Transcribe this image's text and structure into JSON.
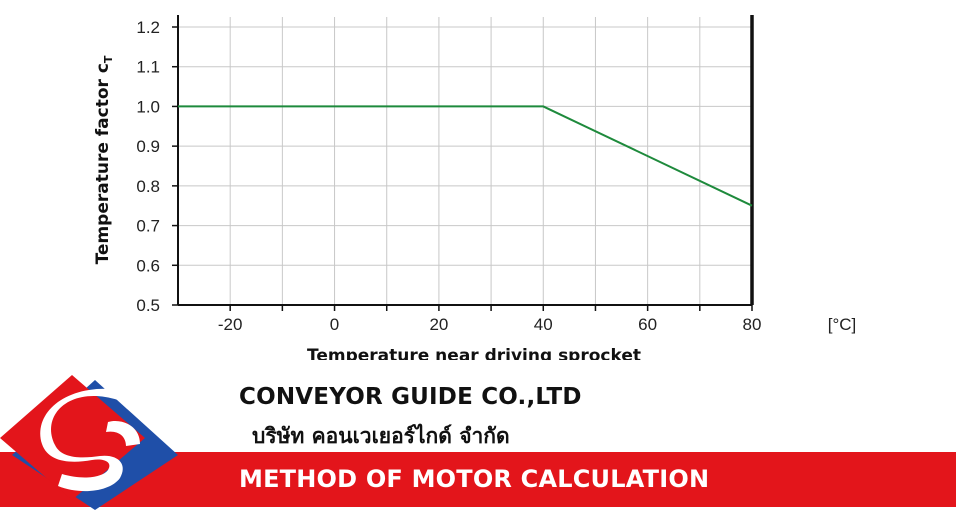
{
  "chart_data": {
    "type": "line",
    "ylabel": "Temperature factor cT",
    "xlabel": "Temperature near driving sprocket",
    "x_unit": "[°C]",
    "xlim": [
      -30,
      80
    ],
    "ylim": [
      0.5,
      1.2
    ],
    "x_ticks": [
      -20,
      0,
      20,
      40,
      60,
      80
    ],
    "x_tick_labels": [
      "-20",
      "0",
      "20",
      "40",
      "60",
      "80"
    ],
    "y_ticks": [
      0.5,
      0.6,
      0.7,
      0.8,
      0.9,
      1.0,
      1.1,
      1.2
    ],
    "y_tick_labels": [
      "0.5",
      "0.6",
      "0.7",
      "0.8",
      "0.9",
      "1.0",
      "1.1",
      "1.2"
    ],
    "grid": true,
    "series": [
      {
        "x": [
          -30,
          40,
          80
        ],
        "y": [
          1.0,
          1.0,
          0.75
        ],
        "color": "#1e8a3c"
      }
    ]
  },
  "branding": {
    "company_en": "CONVEYOR GUIDE CO.,LTD",
    "company_th": "บริษัท คอนเวเยอร์ไกด์ จำกัด",
    "banner_text": "METHOD OF MOTOR CALCULATION",
    "accent_color": "#e3151b",
    "logo_icon": "company-logo-icon"
  }
}
